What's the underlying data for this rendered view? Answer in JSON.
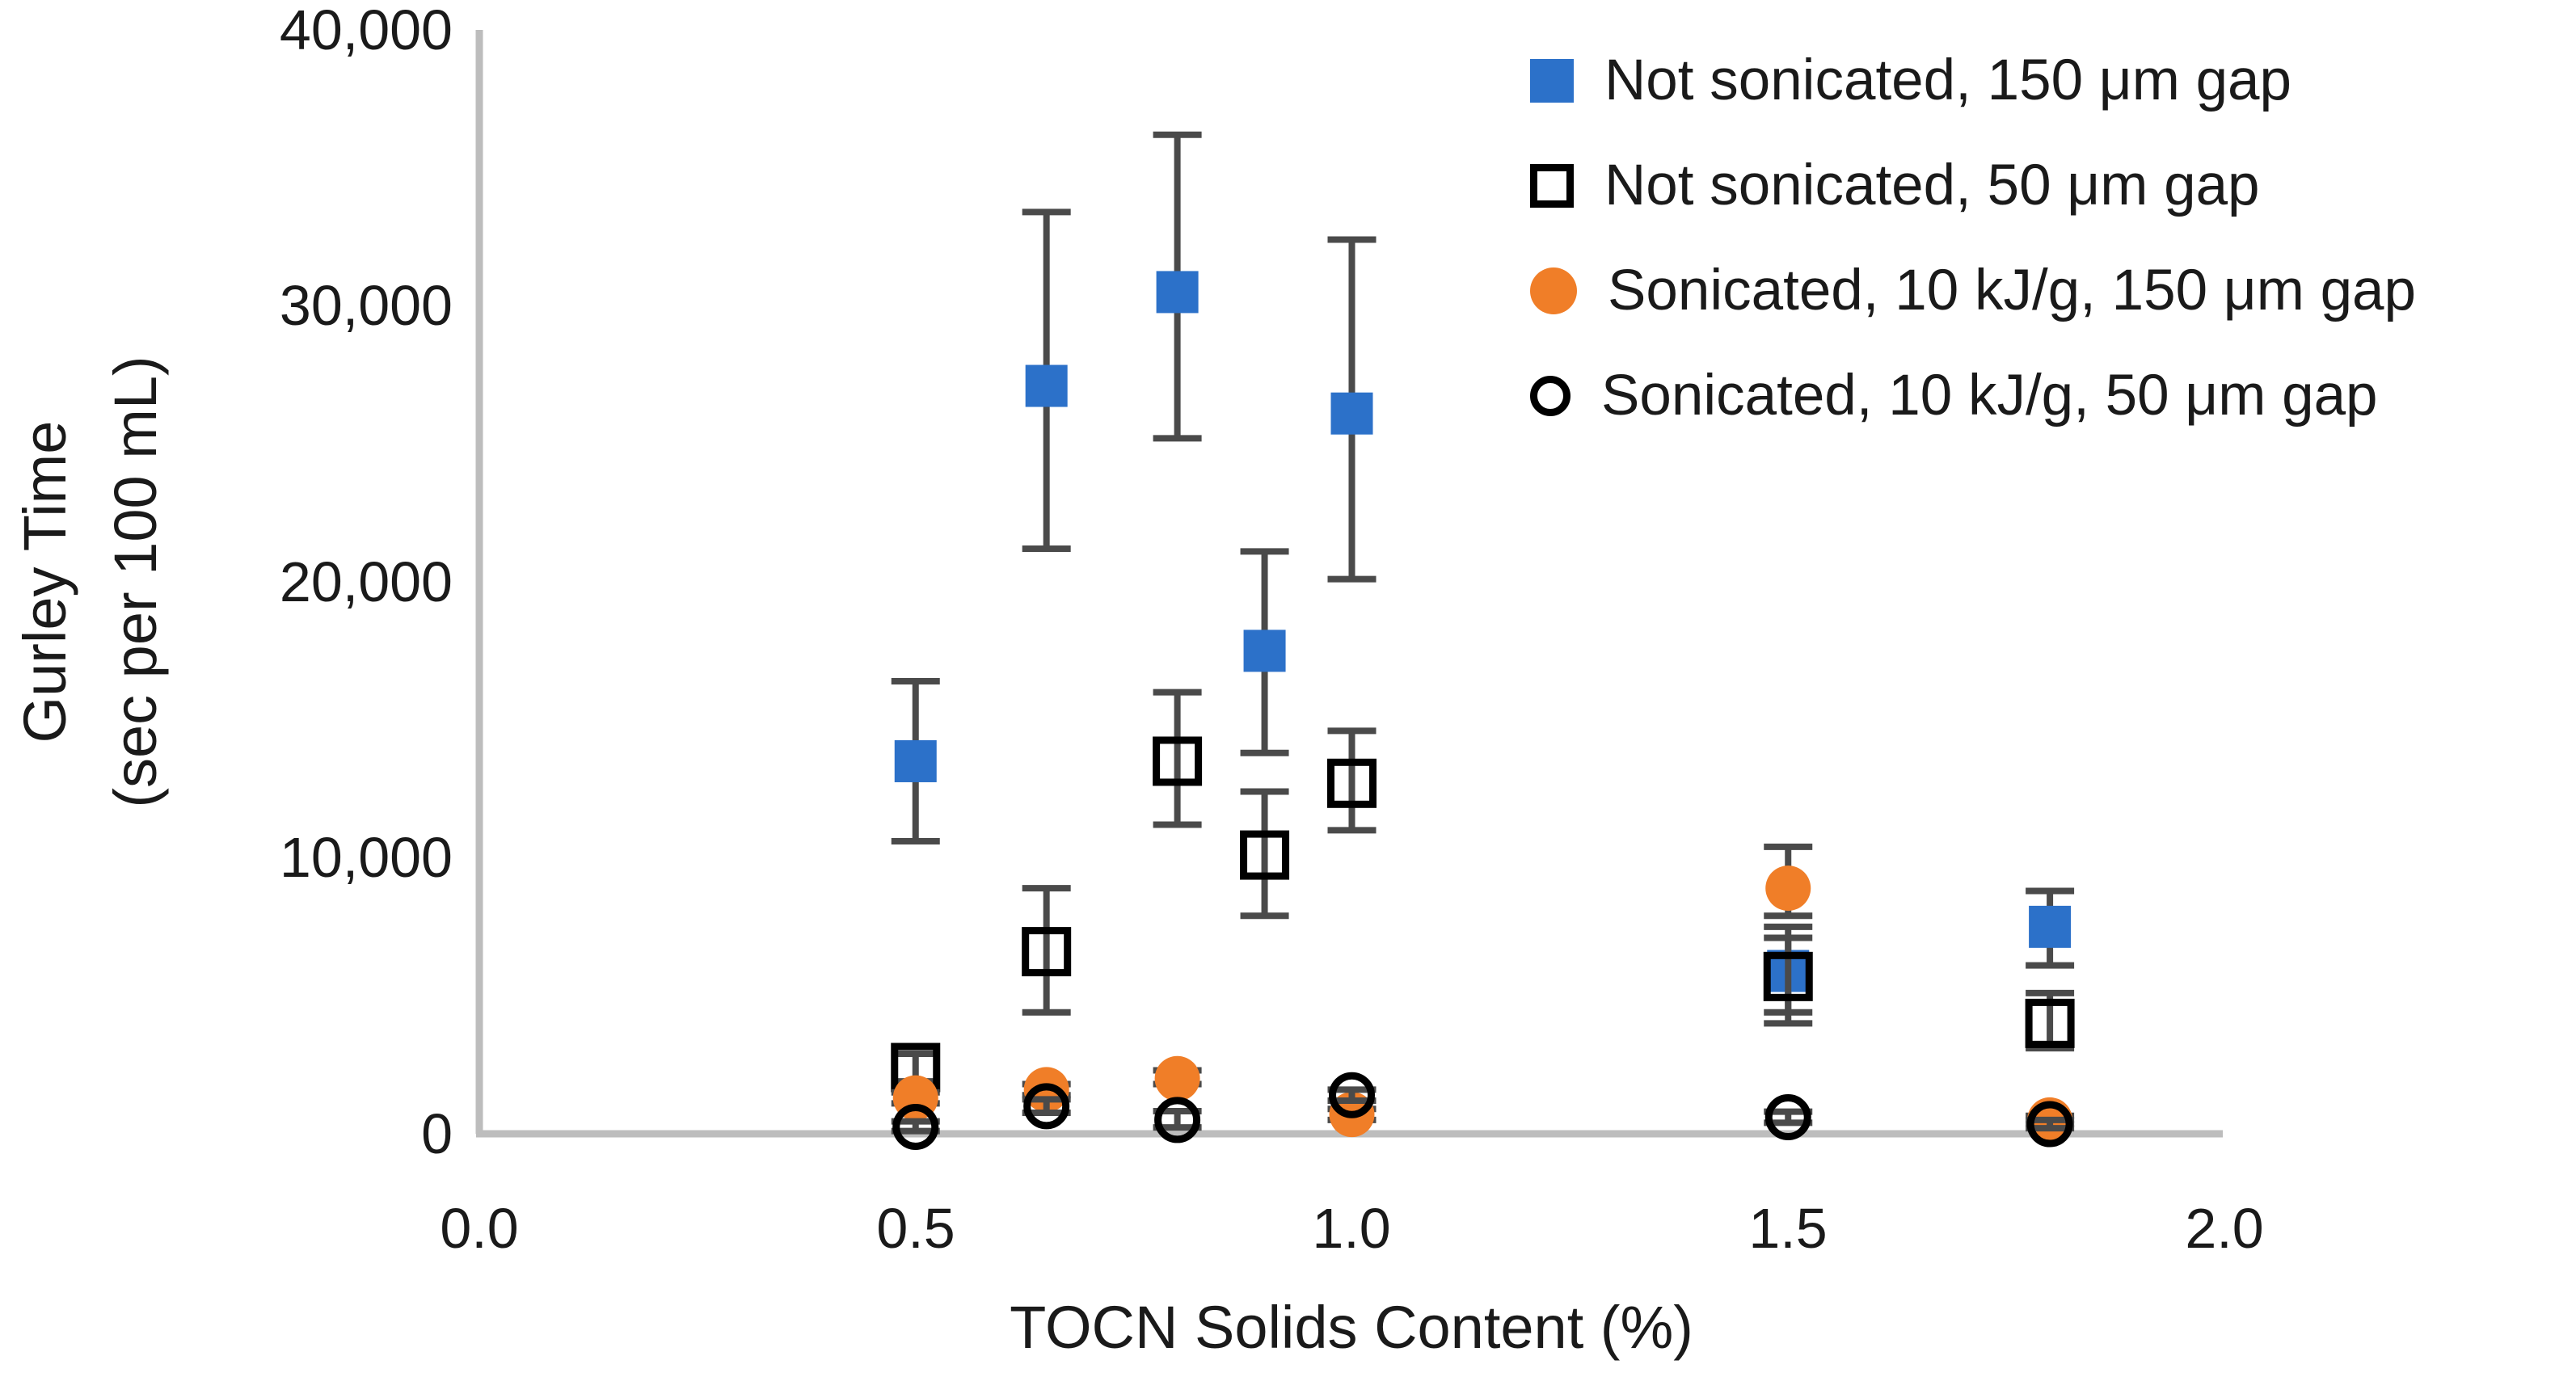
{
  "chart_data": {
    "type": "scatter",
    "title": "",
    "xlabel": "TOCN Solids Content (%)",
    "ylabel_line1": "Gurley Time",
    "ylabel_line2": "(sec per 100 mL)",
    "xlim": [
      0.0,
      2.0
    ],
    "ylim": [
      0,
      40000
    ],
    "grid": false,
    "legend_position": "top-right",
    "x_tick_labels": [
      "0.0",
      "0.5",
      "1.0",
      "1.5",
      "2.0"
    ],
    "x_tick_values": [
      0,
      0.5,
      1.0,
      1.5,
      2.0
    ],
    "y_tick_labels": [
      "40,000",
      "30,000",
      "20,000",
      "10,000",
      "0"
    ],
    "y_tick_values": [
      40000,
      30000,
      20000,
      10000,
      0
    ],
    "colors": {
      "blue": "#2c71c9",
      "orange": "#f07e28",
      "error_bar": "#4a4a4a",
      "axis_line": "#bdbdbd",
      "text": "#1a1a1a"
    },
    "series": [
      {
        "name": "Not sonicated, 150 μm gap",
        "marker": "square-filled",
        "color": "#2c71c9",
        "points": [
          {
            "x": 0.5,
            "y": 13500,
            "lo": 10600,
            "hi": 16400
          },
          {
            "x": 0.65,
            "y": 27100,
            "lo": 21200,
            "hi": 33400
          },
          {
            "x": 0.8,
            "y": 30500,
            "lo": 25200,
            "hi": 36200
          },
          {
            "x": 0.9,
            "y": 17500,
            "lo": 13800,
            "hi": 21100
          },
          {
            "x": 1.0,
            "y": 26100,
            "lo": 20100,
            "hi": 32400
          },
          {
            "x": 1.5,
            "y": 5900,
            "lo": 4400,
            "hi": 7500
          },
          {
            "x": 1.8,
            "y": 7500,
            "lo": 6100,
            "hi": 8800
          }
        ]
      },
      {
        "name": "Not sonicated, 50 μm gap",
        "marker": "square-open",
        "color": "#000000",
        "points": [
          {
            "x": 0.5,
            "y": 2400,
            "lo": 1900,
            "hi": 2900
          },
          {
            "x": 0.65,
            "y": 6600,
            "lo": 4400,
            "hi": 8900
          },
          {
            "x": 0.8,
            "y": 13500,
            "lo": 11200,
            "hi": 16000
          },
          {
            "x": 0.9,
            "y": 10100,
            "lo": 7900,
            "hi": 12400
          },
          {
            "x": 1.0,
            "y": 12700,
            "lo": 11000,
            "hi": 14600
          },
          {
            "x": 1.5,
            "y": 5700,
            "lo": 4000,
            "hi": 7100
          },
          {
            "x": 1.8,
            "y": 4000,
            "lo": 3100,
            "hi": 5100
          }
        ]
      },
      {
        "name": "Sonicated, 10 kJ/g, 150 μm gap",
        "marker": "circle-filled",
        "color": "#f07e28",
        "points": [
          {
            "x": 0.5,
            "y": 1300,
            "lo": 1100,
            "hi": 1500
          },
          {
            "x": 0.65,
            "y": 1600,
            "lo": 1400,
            "hi": 1800
          },
          {
            "x": 0.8,
            "y": 2000,
            "lo": 1800,
            "hi": 2300
          },
          {
            "x": 1.0,
            "y": 700,
            "lo": 500,
            "hi": 900
          },
          {
            "x": 1.5,
            "y": 8900,
            "lo": 7900,
            "hi": 10400
          },
          {
            "x": 1.8,
            "y": 500,
            "lo": 350,
            "hi": 650
          }
        ]
      },
      {
        "name": "Sonicated, 10 kJ/g, 50 μm gap",
        "marker": "circle-open",
        "color": "#000000",
        "points": [
          {
            "x": 0.5,
            "y": 250,
            "lo": 100,
            "hi": 450
          },
          {
            "x": 0.65,
            "y": 1000,
            "lo": 760,
            "hi": 1250
          },
          {
            "x": 0.8,
            "y": 500,
            "lo": 230,
            "hi": 820
          },
          {
            "x": 1.0,
            "y": 1400,
            "lo": 1200,
            "hi": 1600
          },
          {
            "x": 1.5,
            "y": 600,
            "lo": 400,
            "hi": 800
          },
          {
            "x": 1.8,
            "y": 350,
            "lo": 200,
            "hi": 500
          }
        ]
      }
    ]
  }
}
